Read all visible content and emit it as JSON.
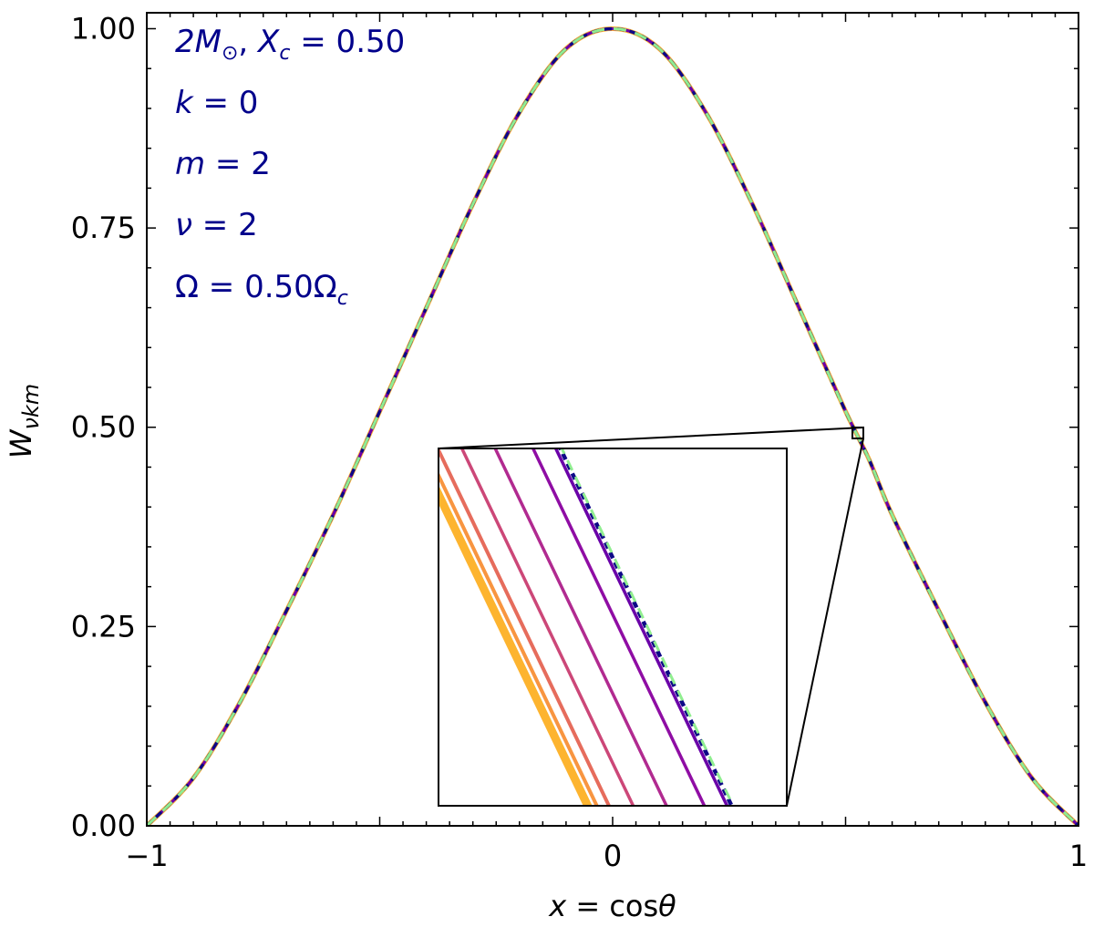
{
  "chart_data": {
    "type": "line",
    "xlabel": "x = cosθ",
    "ylabel": "W_νkm",
    "xlim": [
      -1,
      1
    ],
    "ylim": [
      0,
      1.02
    ],
    "x_ticks": [
      -1,
      0,
      1
    ],
    "x_tick_labels": [
      "−1",
      "0",
      "1"
    ],
    "y_ticks": [
      0,
      0.25,
      0.5,
      0.75,
      1.0
    ],
    "y_tick_labels": [
      "0.00",
      "0.25",
      "0.50",
      "0.75",
      "1.00"
    ],
    "grid": false,
    "annotations": [
      "2M⊙, Xc = 0.50",
      "k = 0",
      "m = 2",
      "ν = 2",
      "Ω = 0.50Ωc"
    ],
    "annotation_color": "#00008b",
    "x": [
      -1.0,
      -0.9,
      -0.8,
      -0.7,
      -0.6,
      -0.5,
      -0.4,
      -0.3,
      -0.2,
      -0.1,
      0.0,
      0.1,
      0.2,
      0.3,
      0.4,
      0.5,
      0.55,
      0.6,
      0.7,
      0.8,
      0.9,
      1.0
    ],
    "values": [
      0.0,
      0.06,
      0.155,
      0.27,
      0.39,
      0.52,
      0.65,
      0.78,
      0.895,
      0.975,
      1.0,
      0.975,
      0.895,
      0.78,
      0.65,
      0.52,
      0.46,
      0.39,
      0.27,
      0.155,
      0.06,
      0.0
    ],
    "series_colors": [
      "#fdb42f",
      "#f89540",
      "#e66c5c",
      "#cc4778",
      "#b12a90",
      "#8f0da4",
      "#6a00a8",
      "#0d0887",
      "#90ee90"
    ],
    "series_styles": [
      "solid",
      "solid",
      "solid",
      "solid",
      "solid",
      "solid",
      "solid",
      "dashed",
      "dashed"
    ],
    "inset": {
      "zoom_center": [
        0.53,
        0.495
      ],
      "offsets": [
        -0.0092,
        -0.0086,
        -0.0078,
        -0.0062,
        -0.004,
        -0.0015,
        0.0,
        0.0003,
        0.0004
      ]
    }
  }
}
